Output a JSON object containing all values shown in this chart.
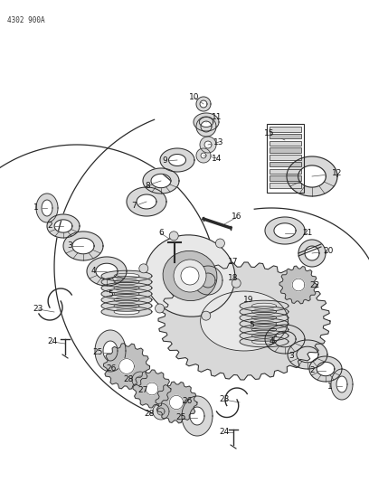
{
  "background_color": "#ffffff",
  "diagram_id": "4302 900A",
  "fig_width": 4.08,
  "fig_height": 5.33,
  "dpi": 100,
  "line_color": "#2a2a2a",
  "label_color": "#111111",
  "part_fill": "#d8d8d8",
  "part_fill2": "#c0c0c0",
  "part_fill3": "#e8e8e8"
}
